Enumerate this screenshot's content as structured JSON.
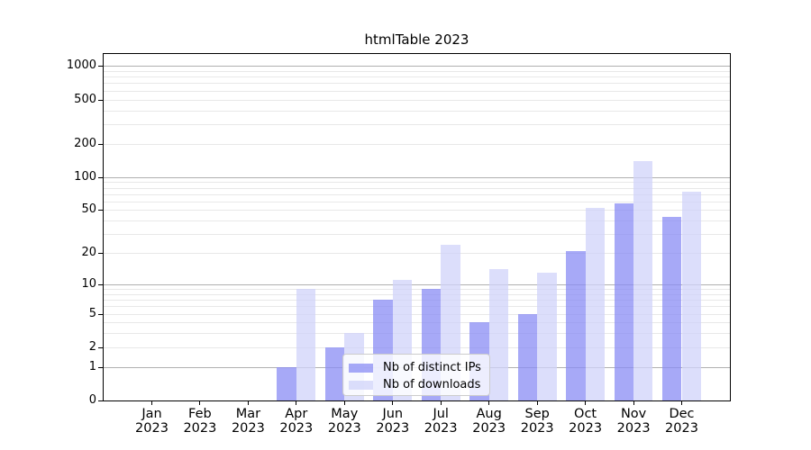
{
  "chart_data": {
    "type": "bar",
    "title": "htmlTable 2023",
    "x_tick_year": "2023",
    "month_labels": [
      "Jan",
      "Feb",
      "Mar",
      "Apr",
      "May",
      "Jun",
      "Jul",
      "Aug",
      "Sep",
      "Oct",
      "Nov",
      "Dec"
    ],
    "categories": [
      "Jan 2023",
      "Feb 2023",
      "Mar 2023",
      "Apr 2023",
      "May 2023",
      "Jun 2023",
      "Jul 2023",
      "Aug 2023",
      "Sep 2023",
      "Oct 2023",
      "Nov 2023",
      "Dec 2023"
    ],
    "series": [
      {
        "name": "Nb of distinct IPs",
        "color": "rgba(137,140,244,0.75)",
        "values": [
          0,
          0,
          0,
          1,
          2,
          7,
          9,
          4,
          5,
          21,
          58,
          43
        ]
      },
      {
        "name": "Nb of downloads",
        "color": "rgba(208,211,250,0.75)",
        "values": [
          0,
          0,
          0,
          9,
          3,
          11,
          24,
          14,
          13,
          52,
          140,
          74
        ]
      }
    ],
    "y_axis": {
      "scale": "log1p",
      "tick_labels": [
        0,
        1,
        2,
        5,
        10,
        20,
        50,
        100,
        200,
        500,
        1000
      ],
      "major_gridlines": [
        1,
        10,
        100,
        1000
      ],
      "minor_gridlines": [
        2,
        3,
        4,
        5,
        6,
        7,
        8,
        9,
        20,
        30,
        40,
        50,
        60,
        70,
        80,
        90,
        200,
        300,
        400,
        500,
        600,
        700,
        800,
        900
      ],
      "ylim": [
        0,
        1280
      ]
    },
    "legend_position": "lower center, inside plot",
    "grid": true,
    "colors": {
      "bar_distinct_ips": "rgba(137,140,244,0.75)",
      "bar_downloads": "rgba(208,211,250,0.75)",
      "major_grid": "#b0b0b0",
      "minor_grid": "#e8e8e8",
      "spine": "#000000"
    }
  }
}
